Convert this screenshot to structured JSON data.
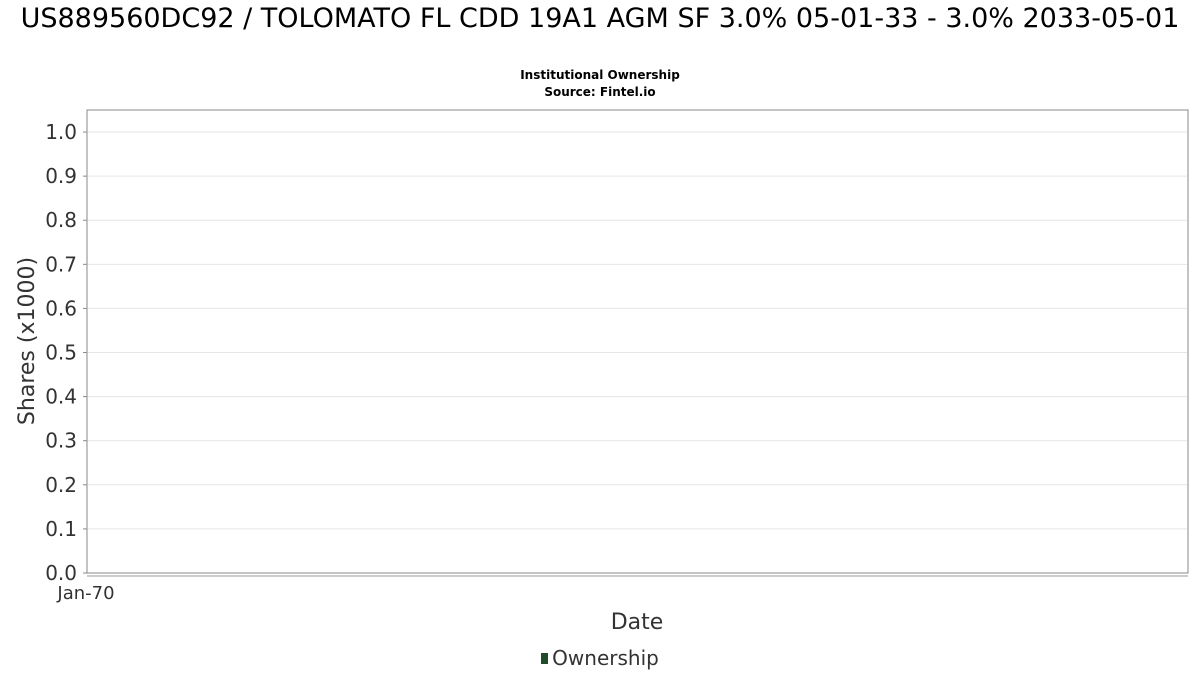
{
  "chart_data": {
    "type": "area",
    "title": "US889560DC92 / TOLOMATO FL CDD 19A1 AGM SF 3.0% 05-01-33 - 3.0% 2033-05-01",
    "subtitles": [
      "Institutional Ownership",
      "Source: Fintel.io"
    ],
    "xlabel": "Date",
    "ylabel": "Shares (x1000)",
    "x_tick_labels": [
      "Jan-70"
    ],
    "y_ticks": [
      0.0,
      0.1,
      0.2,
      0.3,
      0.4,
      0.5,
      0.6,
      0.7,
      0.8,
      0.9,
      1.0
    ],
    "y_tick_labels": [
      "0.0",
      "0.1",
      "0.2",
      "0.3",
      "0.4",
      "0.5",
      "0.6",
      "0.7",
      "0.8",
      "0.9",
      "1.0"
    ],
    "ylim": [
      0,
      1.05
    ],
    "grid": true,
    "legend_position": "bottom-center",
    "series": [
      {
        "name": "Ownership",
        "color": "#1f4d2b",
        "x": [],
        "values": []
      }
    ]
  }
}
